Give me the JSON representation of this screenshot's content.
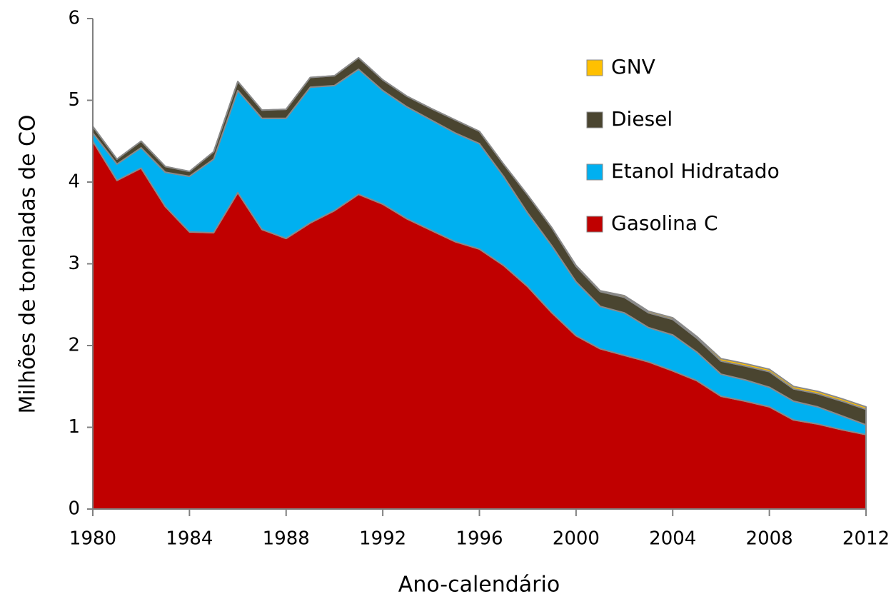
{
  "chart_data": {
    "type": "stacked_area",
    "xlabel": "Ano-calendário",
    "ylabel": "Milhões de toneladas de CO",
    "x": [
      1980,
      1981,
      1982,
      1983,
      1984,
      1985,
      1986,
      1987,
      1988,
      1989,
      1990,
      1991,
      1992,
      1993,
      1994,
      1995,
      1996,
      1997,
      1998,
      1999,
      2000,
      2001,
      2002,
      2003,
      2004,
      2005,
      2006,
      2007,
      2008,
      2009,
      2010,
      2011,
      2012
    ],
    "series": [
      {
        "name": "Gasolina C",
        "color": "#c00000",
        "values": [
          4.5,
          4.02,
          4.17,
          3.7,
          3.39,
          3.38,
          3.87,
          3.42,
          3.31,
          3.5,
          3.65,
          3.85,
          3.73,
          3.55,
          3.41,
          3.27,
          3.18,
          2.98,
          2.72,
          2.4,
          2.12,
          1.96,
          1.88,
          1.8,
          1.69,
          1.57,
          1.38,
          1.32,
          1.25,
          1.09,
          1.04,
          0.97,
          0.91
        ]
      },
      {
        "name": "Etanol Hidratado",
        "color": "#00b0f0",
        "values": [
          0.1,
          0.2,
          0.25,
          0.42,
          0.68,
          0.9,
          1.25,
          1.36,
          1.47,
          1.66,
          1.53,
          1.53,
          1.39,
          1.37,
          1.35,
          1.33,
          1.29,
          1.09,
          0.9,
          0.82,
          0.66,
          0.52,
          0.52,
          0.42,
          0.44,
          0.35,
          0.27,
          0.26,
          0.24,
          0.23,
          0.21,
          0.17,
          0.12
        ]
      },
      {
        "name": "Diesel",
        "color": "#4a4530",
        "values": [
          0.08,
          0.06,
          0.08,
          0.07,
          0.06,
          0.09,
          0.11,
          0.1,
          0.11,
          0.12,
          0.12,
          0.14,
          0.13,
          0.13,
          0.14,
          0.16,
          0.15,
          0.15,
          0.22,
          0.22,
          0.19,
          0.18,
          0.19,
          0.18,
          0.19,
          0.17,
          0.16,
          0.17,
          0.19,
          0.15,
          0.16,
          0.18,
          0.19
        ]
      },
      {
        "name": "GNV",
        "color": "#ffc000",
        "values": [
          0,
          0,
          0,
          0,
          0,
          0,
          0,
          0,
          0,
          0,
          0,
          0,
          0,
          0,
          0,
          0,
          0,
          0,
          0,
          0,
          0.01,
          0.01,
          0.02,
          0.02,
          0.02,
          0.02,
          0.03,
          0.03,
          0.03,
          0.03,
          0.03,
          0.03,
          0.03
        ]
      }
    ],
    "xlim": [
      1980,
      2012
    ],
    "xticks": [
      1980,
      1984,
      1988,
      1992,
      1996,
      2000,
      2004,
      2008,
      2012
    ],
    "ylim": [
      0,
      6
    ],
    "yticks": [
      0,
      1,
      2,
      3,
      4,
      5,
      6
    ]
  }
}
